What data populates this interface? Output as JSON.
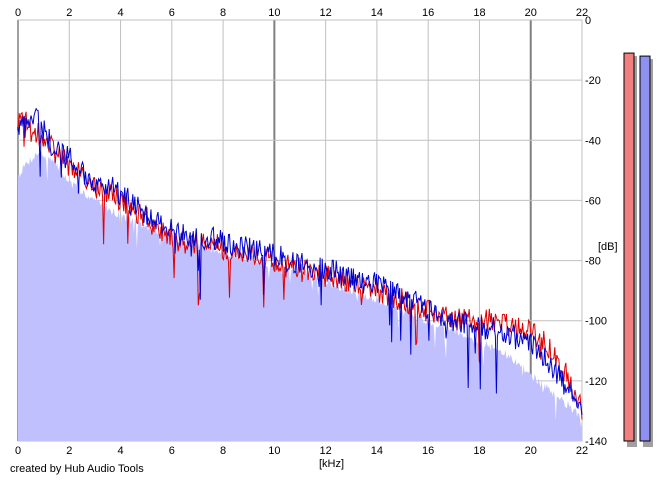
{
  "credit_text": "created by Hub Audio Tools",
  "colors": {
    "background": "#ffffff",
    "grid_minor": "#c0c0c0",
    "grid_major": "#808080",
    "fill_area": "#c0c0ff",
    "left_channel": "#e00000",
    "right_channel": "#0000d0",
    "meter_left": "#f08080",
    "meter_right": "#9090f0",
    "meter_shadow": "#a0a0a0"
  },
  "chart_data": {
    "type": "area",
    "title": "",
    "xlabel": "[kHz]",
    "ylabel": "[dB]",
    "xlim": [
      0,
      22
    ],
    "ylim": [
      -140,
      0
    ],
    "x_ticks": [
      0,
      2,
      4,
      6,
      8,
      10,
      12,
      14,
      16,
      18,
      20,
      22
    ],
    "x_tick_labels": [
      "0",
      "2",
      "4",
      "6",
      "8",
      "10",
      "12",
      "14",
      "16",
      "18",
      "20",
      "22"
    ],
    "y_ticks": [
      0,
      -20,
      -40,
      -60,
      -80,
      -100,
      -120,
      -140
    ],
    "y_tick_labels": [
      "0",
      "-20",
      "-40",
      "-60",
      "-80",
      "-100",
      "-120",
      "-140"
    ],
    "major_x_gridlines": [
      0,
      10,
      20
    ],
    "grid": true,
    "area_floor": {
      "x": [
        0,
        0.3,
        0.8,
        1.5,
        2,
        3,
        4,
        5,
        6,
        7,
        8,
        9,
        10,
        11,
        12,
        13,
        14,
        15,
        16,
        17,
        18,
        19,
        20,
        21,
        22
      ],
      "values": [
        -52,
        -48,
        -44,
        -48,
        -54,
        -60,
        -65,
        -69,
        -72,
        -75,
        -77,
        -79,
        -82,
        -84,
        -87,
        -90,
        -93,
        -97,
        -100,
        -103,
        -107,
        -111,
        -118,
        -125,
        -132
      ]
    },
    "series": [
      {
        "name": "",
        "color": "#e00000",
        "x": [
          0,
          0.3,
          0.6,
          0.9,
          1.2,
          1.5,
          2,
          2.5,
          3,
          3.5,
          4,
          4.5,
          5,
          5.5,
          6,
          6.5,
          7,
          7.5,
          8,
          8.5,
          9,
          9.5,
          10,
          10.5,
          11,
          11.5,
          12,
          12.5,
          13,
          13.5,
          14,
          14.5,
          15,
          15.5,
          16,
          16.5,
          17,
          17.5,
          18,
          18.5,
          19,
          19.5,
          20,
          20.5,
          21,
          21.5,
          22
        ],
        "values": [
          -35,
          -33,
          -39,
          -37,
          -41,
          -45,
          -48,
          -52,
          -56,
          -57,
          -60,
          -63,
          -66,
          -70,
          -72,
          -74,
          -75,
          -74,
          -76,
          -77,
          -78,
          -79,
          -80,
          -82,
          -83,
          -84,
          -85,
          -86,
          -88,
          -89,
          -90,
          -92,
          -93,
          -95,
          -97,
          -98,
          -99,
          -100,
          -100,
          -100,
          -101,
          -102,
          -103,
          -107,
          -112,
          -120,
          -129
        ]
      },
      {
        "name": "",
        "color": "#0000d0",
        "x": [
          0,
          0.3,
          0.6,
          0.9,
          1.2,
          1.5,
          2,
          2.5,
          3,
          3.5,
          4,
          4.5,
          5,
          5.5,
          6,
          6.5,
          7,
          7.5,
          8,
          8.5,
          9,
          9.5,
          10,
          10.5,
          11,
          11.5,
          12,
          12.5,
          13,
          13.5,
          14,
          14.5,
          15,
          15.5,
          16,
          16.5,
          17,
          17.5,
          18,
          18.5,
          19,
          19.5,
          20,
          20.5,
          21,
          21.5,
          22
        ],
        "values": [
          -34,
          -36,
          -32,
          -35,
          -40,
          -44,
          -46,
          -50,
          -54,
          -55,
          -58,
          -61,
          -64,
          -67,
          -70,
          -72,
          -73,
          -72,
          -74,
          -75,
          -76,
          -77,
          -78,
          -80,
          -81,
          -82,
          -83,
          -84,
          -86,
          -87,
          -88,
          -90,
          -91,
          -93,
          -96,
          -98,
          -100,
          -101,
          -102,
          -103,
          -104,
          -106,
          -108,
          -112,
          -117,
          -124,
          -131
        ]
      }
    ],
    "level_meters": [
      {
        "color": "#f08080",
        "top": -11,
        "bottom": -140
      },
      {
        "color": "#9090f0",
        "top": -12,
        "bottom": -140
      }
    ]
  }
}
